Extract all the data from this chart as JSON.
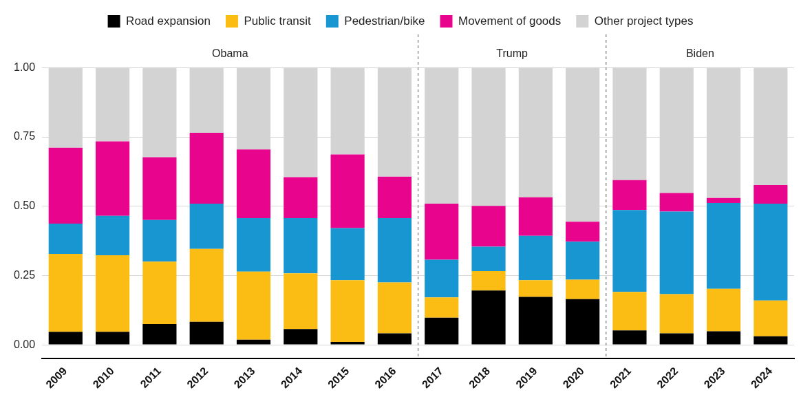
{
  "chart_data": {
    "type": "bar",
    "stacked": true,
    "legend": "top",
    "grid": "y",
    "categories": [
      "2009",
      "2010",
      "2011",
      "2012",
      "2013",
      "2014",
      "2015",
      "2016",
      "2017",
      "2018",
      "2019",
      "2020",
      "2021",
      "2022",
      "2023",
      "2024"
    ],
    "series": [
      {
        "name": "Road expansion",
        "color": "#000000",
        "values": [
          0.047,
          0.047,
          0.075,
          0.083,
          0.018,
          0.057,
          0.01,
          0.041,
          0.098,
          0.196,
          0.173,
          0.165,
          0.052,
          0.041,
          0.049,
          0.031
        ]
      },
      {
        "name": "Public transit",
        "color": "#fbbc14",
        "values": [
          0.281,
          0.276,
          0.225,
          0.263,
          0.246,
          0.201,
          0.223,
          0.184,
          0.073,
          0.07,
          0.06,
          0.07,
          0.139,
          0.142,
          0.153,
          0.129
        ]
      },
      {
        "name": "Pedestrian/bike",
        "color": "#1896d2",
        "values": [
          0.109,
          0.142,
          0.15,
          0.163,
          0.193,
          0.199,
          0.188,
          0.232,
          0.136,
          0.088,
          0.16,
          0.137,
          0.295,
          0.298,
          0.31,
          0.349
        ]
      },
      {
        "name": "Movement of goods",
        "color": "#e8048c",
        "values": [
          0.274,
          0.269,
          0.227,
          0.256,
          0.248,
          0.148,
          0.266,
          0.15,
          0.202,
          0.147,
          0.139,
          0.072,
          0.108,
          0.067,
          0.018,
          0.067
        ]
      },
      {
        "name": "Other project types",
        "color": "#d3d3d3",
        "values": [
          0.289,
          0.266,
          0.323,
          0.235,
          0.295,
          0.395,
          0.313,
          0.393,
          0.491,
          0.499,
          0.468,
          0.556,
          0.406,
          0.452,
          0.47,
          0.424
        ]
      }
    ],
    "ylim": [
      -0.05,
      1.12
    ],
    "yticks": [
      {
        "value": 0,
        "label": "0.00"
      },
      {
        "value": 0.25,
        "label": "0.25"
      },
      {
        "value": 0.5,
        "label": "0.50"
      },
      {
        "value": 0.75,
        "label": "0.75"
      },
      {
        "value": 1,
        "label": "1.00"
      }
    ],
    "annotations": [
      "Obama",
      "Trump",
      "Biden"
    ]
  }
}
